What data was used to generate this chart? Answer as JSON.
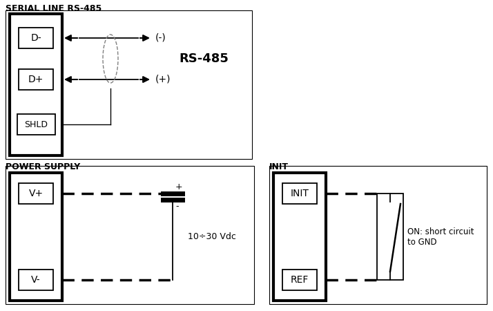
{
  "bg_color": "#ffffff",
  "title_serial": "SERIAL LINE RS-485",
  "title_power": "POWER SUPPLY",
  "title_init": "INIT",
  "rs485_label": "RS-485",
  "voltage_label": "10÷30 Vdc",
  "switch_label": "ON: short circuit\nto GND",
  "line_color": "#000000",
  "fig_w": 7.14,
  "fig_h": 4.5,
  "dpi": 100
}
